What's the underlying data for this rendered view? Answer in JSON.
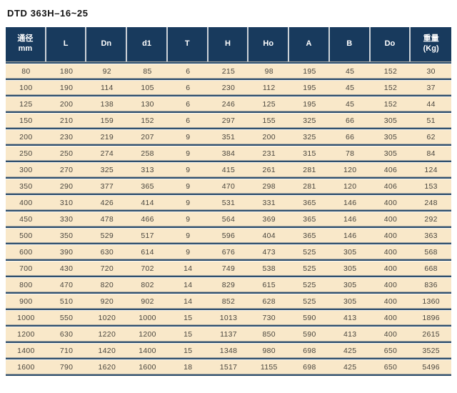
{
  "page": {
    "title": "DTD 363H–16~25"
  },
  "colors": {
    "header_bg": "#183a5d",
    "header_text": "#ffffff",
    "header_sep": "#ccd2d8",
    "row_bg": "#f9e8c9",
    "row_text": "#4a463e",
    "divider": "#2e4f6e",
    "title_text": "#121212",
    "page_bg": "#ffffff"
  },
  "table": {
    "columns": [
      {
        "id": "bore-mm",
        "label_lines": [
          "通径",
          "mm"
        ]
      },
      {
        "id": "L",
        "label_lines": [
          "L"
        ]
      },
      {
        "id": "Dn",
        "label_lines": [
          "Dn"
        ]
      },
      {
        "id": "d1",
        "label_lines": [
          "d1"
        ]
      },
      {
        "id": "T",
        "label_lines": [
          "T"
        ]
      },
      {
        "id": "H",
        "label_lines": [
          "H"
        ]
      },
      {
        "id": "Ho",
        "label_lines": [
          "Ho"
        ]
      },
      {
        "id": "A",
        "label_lines": [
          "A"
        ]
      },
      {
        "id": "B",
        "label_lines": [
          "B"
        ]
      },
      {
        "id": "Do",
        "label_lines": [
          "Do"
        ]
      },
      {
        "id": "weight-kg",
        "label_lines": [
          "重量",
          "(Kg)"
        ]
      }
    ],
    "rows": [
      [
        80,
        180,
        92,
        85,
        6,
        215,
        98,
        195,
        45,
        152,
        30
      ],
      [
        100,
        190,
        114,
        105,
        6,
        230,
        112,
        195,
        45,
        152,
        37
      ],
      [
        125,
        200,
        138,
        130,
        6,
        246,
        125,
        195,
        45,
        152,
        44
      ],
      [
        150,
        210,
        159,
        152,
        6,
        297,
        155,
        325,
        66,
        305,
        51
      ],
      [
        200,
        230,
        219,
        207,
        9,
        351,
        200,
        325,
        66,
        305,
        62
      ],
      [
        250,
        250,
        274,
        258,
        9,
        384,
        231,
        315,
        78,
        305,
        84
      ],
      [
        300,
        270,
        325,
        313,
        9,
        415,
        261,
        281,
        120,
        406,
        124
      ],
      [
        350,
        290,
        377,
        365,
        9,
        470,
        298,
        281,
        120,
        406,
        153
      ],
      [
        400,
        310,
        426,
        414,
        9,
        531,
        331,
        365,
        146,
        400,
        248
      ],
      [
        450,
        330,
        478,
        466,
        9,
        564,
        369,
        365,
        146,
        400,
        292
      ],
      [
        500,
        350,
        529,
        517,
        9,
        596,
        404,
        365,
        146,
        400,
        363
      ],
      [
        600,
        390,
        630,
        614,
        9,
        676,
        473,
        525,
        305,
        400,
        568
      ],
      [
        700,
        430,
        720,
        702,
        14,
        749,
        538,
        525,
        305,
        400,
        668
      ],
      [
        800,
        470,
        820,
        802,
        14,
        829,
        615,
        525,
        305,
        400,
        836
      ],
      [
        900,
        510,
        920,
        902,
        14,
        852,
        628,
        525,
        305,
        400,
        1360
      ],
      [
        1000,
        550,
        1020,
        1000,
        15,
        1013,
        730,
        590,
        413,
        400,
        1896
      ],
      [
        1200,
        630,
        1220,
        1200,
        15,
        1137,
        850,
        590,
        413,
        400,
        2615
      ],
      [
        1400,
        710,
        1420,
        1400,
        15,
        1348,
        980,
        698,
        425,
        650,
        3525
      ],
      [
        1600,
        790,
        1620,
        1600,
        18,
        1517,
        1155,
        698,
        425,
        650,
        5496
      ]
    ]
  }
}
